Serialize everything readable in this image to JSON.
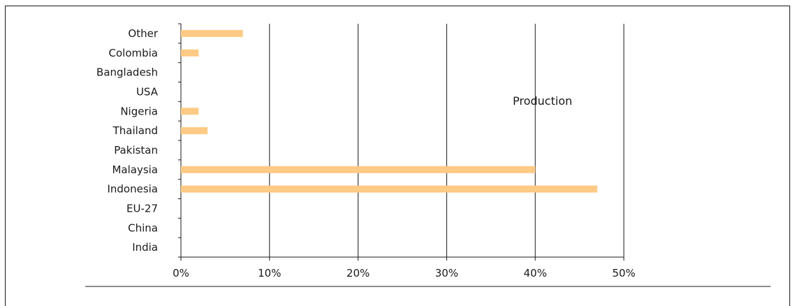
{
  "chart_data": {
    "type": "bar",
    "orientation": "horizontal",
    "categories": [
      "Other",
      "Colombia",
      "Bangladesh",
      "USA",
      "Nigeria",
      "Thailand",
      "Pakistan",
      "Malaysia",
      "Indonesia",
      "EU-27",
      "China",
      "India"
    ],
    "values": [
      7,
      2,
      0,
      0,
      2,
      3,
      0,
      40,
      47,
      0,
      0,
      0
    ],
    "xlim": [
      0,
      50
    ],
    "xticks": [
      "0%",
      "10%",
      "20%",
      "30%",
      "40%",
      "50%"
    ],
    "annotation": "Production",
    "bar_color": "#ffca85",
    "grid": "vertical"
  }
}
